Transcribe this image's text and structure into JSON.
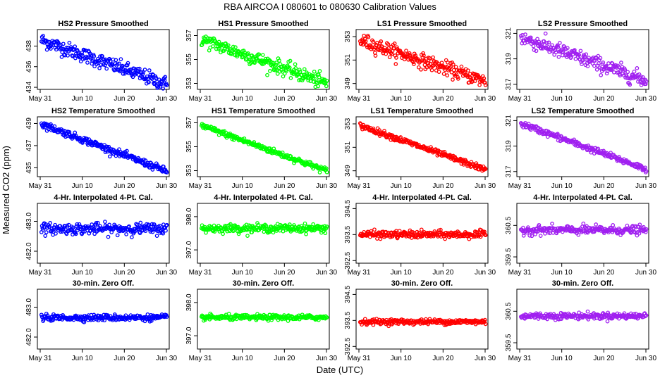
{
  "figure": {
    "title": "RBA   AIRCOA I   080601 to 080630   Calibration Values",
    "ylabel": "Measured CO2 (ppm)",
    "xlabel": "Date (UTC)"
  },
  "x_axis": {
    "tick_labels": [
      "May 31",
      "Jun 10",
      "Jun 20",
      "Jun 30"
    ],
    "tick_days": [
      0,
      10,
      20,
      30
    ],
    "range_days": [
      0,
      30
    ]
  },
  "chart_data": [
    {
      "type": "scatter",
      "title": "HS2 Pressure Smoothed",
      "color": "#0000ff",
      "ylim": [
        433.8,
        439.6
      ],
      "yticks": [
        434,
        436,
        438
      ],
      "ytick_labels": [
        "434",
        "436",
        "438"
      ],
      "series": [
        {
          "name": "HS2",
          "start": 438.6,
          "end": 434.3,
          "noise": 0.35,
          "n": 230
        }
      ]
    },
    {
      "type": "scatter",
      "title": "HS1 Pressure Smoothed",
      "color": "#00ff00",
      "ylim": [
        352.5,
        357.5
      ],
      "yticks": [
        353,
        355,
        357
      ],
      "ytick_labels": [
        "353",
        "355",
        "357"
      ],
      "series": [
        {
          "name": "HS1",
          "start": 356.7,
          "end": 353.0,
          "noise": 0.3,
          "n": 230
        }
      ]
    },
    {
      "type": "scatter",
      "title": "LS1 Pressure Smoothed",
      "color": "#ff0000",
      "ylim": [
        348.5,
        353.6
      ],
      "yticks": [
        349,
        351,
        353
      ],
      "ytick_labels": [
        "349",
        "351",
        "353"
      ],
      "series": [
        {
          "name": "LS1",
          "start": 352.7,
          "end": 349.2,
          "noise": 0.3,
          "n": 230
        }
      ]
    },
    {
      "type": "scatter",
      "title": "LS2 Pressure Smoothed",
      "color": "#a020f0",
      "ylim": [
        316.6,
        321.3
      ],
      "yticks": [
        317,
        319,
        321
      ],
      "ytick_labels": [
        "317",
        "319",
        "321"
      ],
      "series": [
        {
          "name": "LS2",
          "start": 320.7,
          "end": 317.3,
          "noise": 0.3,
          "n": 230
        }
      ]
    },
    {
      "type": "scatter",
      "title": "HS2 Temperature Smoothed",
      "color": "#0000ff",
      "ylim": [
        434.2,
        439.6
      ],
      "yticks": [
        435,
        437,
        439
      ],
      "ytick_labels": [
        "435",
        "437",
        "439"
      ],
      "series": [
        {
          "name": "HS2",
          "start": 439.0,
          "end": 434.7,
          "noise": 0.15,
          "n": 230
        }
      ]
    },
    {
      "type": "scatter",
      "title": "HS1 Temperature Smoothed",
      "color": "#00ff00",
      "ylim": [
        352.5,
        357.5
      ],
      "yticks": [
        353,
        355,
        357
      ],
      "ytick_labels": [
        "353",
        "355",
        "357"
      ],
      "series": [
        {
          "name": "HS1",
          "start": 356.8,
          "end": 353.0,
          "noise": 0.12,
          "n": 230
        }
      ]
    },
    {
      "type": "scatter",
      "title": "LS1 Temperature Smoothed",
      "color": "#ff0000",
      "ylim": [
        348.5,
        353.6
      ],
      "yticks": [
        349,
        351,
        353
      ],
      "ytick_labels": [
        "349",
        "351",
        "353"
      ],
      "series": [
        {
          "name": "LS1",
          "start": 352.9,
          "end": 349.1,
          "noise": 0.12,
          "n": 230
        }
      ]
    },
    {
      "type": "scatter",
      "title": "LS2 Temperature Smoothed",
      "color": "#a020f0",
      "ylim": [
        316.6,
        321.3
      ],
      "yticks": [
        317,
        319,
        321
      ],
      "ytick_labels": [
        "317",
        "319",
        "321"
      ],
      "series": [
        {
          "name": "LS2",
          "start": 320.8,
          "end": 317.2,
          "noise": 0.12,
          "n": 230
        }
      ]
    },
    {
      "type": "scatter",
      "title": "4-Hr. Interpolated 4-Pt. Cal.",
      "color": "#0000ff",
      "ylim": [
        481.6,
        483.6
      ],
      "yticks": [
        482.0,
        483.0
      ],
      "ytick_labels": [
        "482.0",
        "483.0"
      ],
      "series": [
        {
          "name": "HS2",
          "start": 482.75,
          "end": 482.75,
          "noise": 0.09,
          "n": 230
        }
      ]
    },
    {
      "type": "scatter",
      "title": "4-Hr. Interpolated 4-Pt. Cal.",
      "color": "#00ff00",
      "ylim": [
        396.6,
        398.4
      ],
      "yticks": [
        397.0,
        398.0
      ],
      "ytick_labels": [
        "397.0",
        "398.0"
      ],
      "series": [
        {
          "name": "HS1",
          "start": 397.65,
          "end": 397.65,
          "noise": 0.06,
          "n": 230
        }
      ]
    },
    {
      "type": "scatter",
      "title": "4-Hr. Interpolated 4-Pt. Cal.",
      "color": "#ff0000",
      "ylim": [
        392.4,
        394.7
      ],
      "yticks": [
        392.5,
        393.5,
        394.5
      ],
      "ytick_labels": [
        "392.5",
        "393.5",
        "394.5"
      ],
      "series": [
        {
          "name": "LS1",
          "start": 393.5,
          "end": 393.5,
          "noise": 0.07,
          "n": 230
        }
      ]
    },
    {
      "type": "scatter",
      "title": "4-Hr. Interpolated 4-Pt. Cal.",
      "color": "#a020f0",
      "ylim": [
        359.3,
        361.2
      ],
      "yticks": [
        359.5,
        360.5
      ],
      "ytick_labels": [
        "359.5",
        "360.5"
      ],
      "series": [
        {
          "name": "LS2",
          "start": 360.35,
          "end": 360.35,
          "noise": 0.07,
          "n": 230
        }
      ]
    },
    {
      "type": "scatter",
      "title": "30-min. Zero Off.",
      "color": "#0000ff",
      "ylim": [
        481.6,
        483.6
      ],
      "yticks": [
        482.0,
        483.0
      ],
      "ytick_labels": [
        "482.0",
        "483.0"
      ],
      "series": [
        {
          "name": "HS2",
          "start": 482.65,
          "end": 482.65,
          "noise": 0.05,
          "n": 230
        }
      ]
    },
    {
      "type": "scatter",
      "title": "30-min. Zero Off.",
      "color": "#00ff00",
      "ylim": [
        396.6,
        398.4
      ],
      "yticks": [
        397.0,
        398.0
      ],
      "ytick_labels": [
        "397.0",
        "398.0"
      ],
      "series": [
        {
          "name": "HS1",
          "start": 397.55,
          "end": 397.55,
          "noise": 0.04,
          "n": 230
        }
      ]
    },
    {
      "type": "scatter",
      "title": "30-min. Zero Off.",
      "color": "#ff0000",
      "ylim": [
        392.4,
        394.7
      ],
      "yticks": [
        392.5,
        393.5,
        394.5
      ],
      "ytick_labels": [
        "392.5",
        "393.5",
        "394.5"
      ],
      "series": [
        {
          "name": "LS1",
          "start": 393.45,
          "end": 393.45,
          "noise": 0.05,
          "n": 230
        }
      ]
    },
    {
      "type": "scatter",
      "title": "30-min. Zero Off.",
      "color": "#a020f0",
      "ylim": [
        359.3,
        361.2
      ],
      "yticks": [
        359.5,
        360.5
      ],
      "ytick_labels": [
        "359.5",
        "360.5"
      ],
      "series": [
        {
          "name": "LS2",
          "start": 360.35,
          "end": 360.35,
          "noise": 0.05,
          "n": 230
        }
      ]
    }
  ]
}
